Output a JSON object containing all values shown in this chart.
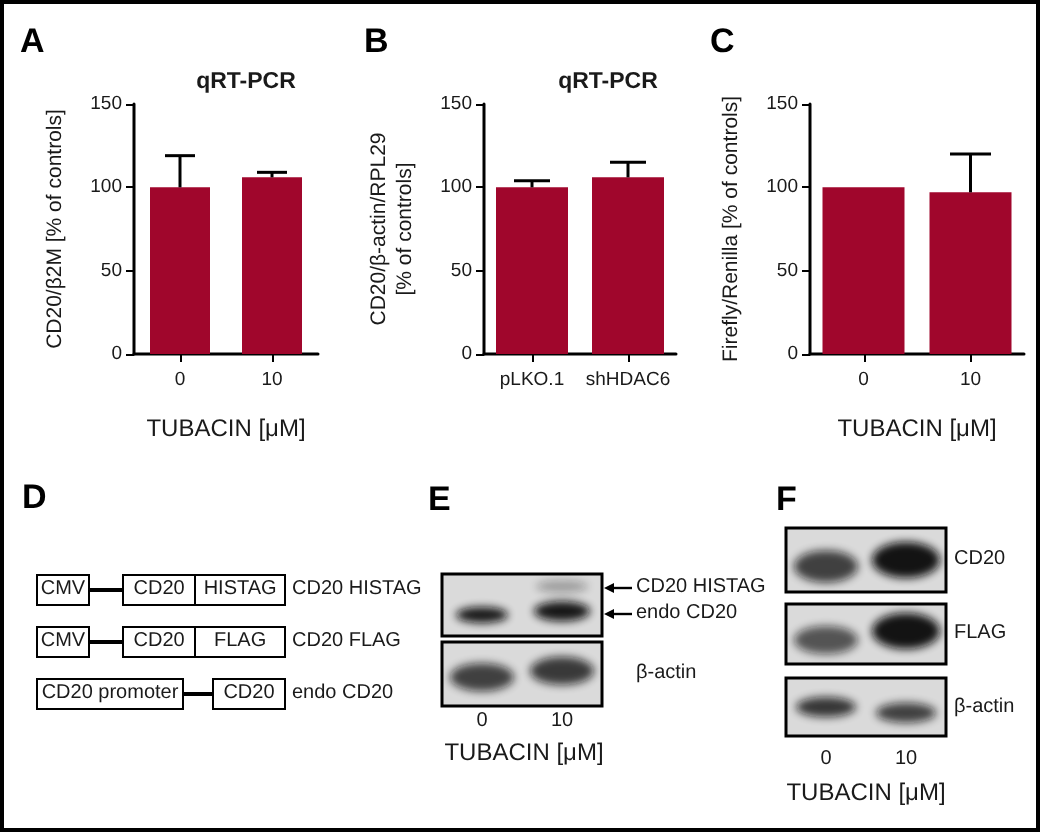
{
  "chart_data": [
    {
      "type": "bar",
      "title": "qRT-PCR",
      "categories": [
        "0",
        "10"
      ],
      "values": [
        100,
        106
      ],
      "errors": [
        [
          100,
          119
        ],
        [
          106,
          109
        ]
      ],
      "color": "#a0062c",
      "xlabel": "TUBACIN [μM]",
      "ylabel": "CD20/β2M [% of controls]",
      "ylim": [
        0,
        150
      ],
      "yticks": [
        0,
        50,
        100,
        150
      ],
      "annotations": [
        "A"
      ]
    },
    {
      "type": "bar",
      "title": "qRT-PCR",
      "categories": [
        "pLKO.1",
        "shHDAC6"
      ],
      "values": [
        100,
        106
      ],
      "errors": [
        [
          100,
          104
        ],
        [
          106,
          115
        ]
      ],
      "color": "#a0062c",
      "ylabel": "CD20/β-actin/RPL29 [% of controls]",
      "ylim": [
        0,
        150
      ],
      "yticks": [
        0,
        50,
        100,
        150
      ],
      "annotations": [
        "B"
      ]
    },
    {
      "type": "bar",
      "categories": [
        "0",
        "10"
      ],
      "values": [
        100,
        97
      ],
      "errors": [
        null,
        [
          97,
          120
        ]
      ],
      "color": "#a0062c",
      "xlabel": "TUBACIN [μM]",
      "ylabel": "Firefly/Renilla [% of controls]",
      "ylim": [
        0,
        150
      ],
      "yticks": [
        0,
        50,
        100,
        150
      ],
      "annotations": [
        "C"
      ]
    },
    {
      "type": "other",
      "annotations": [
        "D",
        "CMV",
        "CD20",
        "HISTAG",
        "CD20 HISTAG",
        "CMV",
        "CD20",
        "FLAG",
        "CD20 FLAG",
        "CD20 promoter",
        "CD20",
        "endo CD20"
      ]
    },
    {
      "type": "other",
      "categories": [
        "0",
        "10"
      ],
      "xlabel": "TUBACIN [μM]",
      "annotations": [
        "E",
        "CD20 HISTAG",
        "endo CD20",
        "β-actin"
      ]
    },
    {
      "type": "other",
      "categories": [
        "0",
        "10"
      ],
      "xlabel": "TUBACIN [μM]",
      "annotations": [
        "F",
        "CD20",
        "FLAG",
        "β-actin"
      ]
    }
  ]
}
